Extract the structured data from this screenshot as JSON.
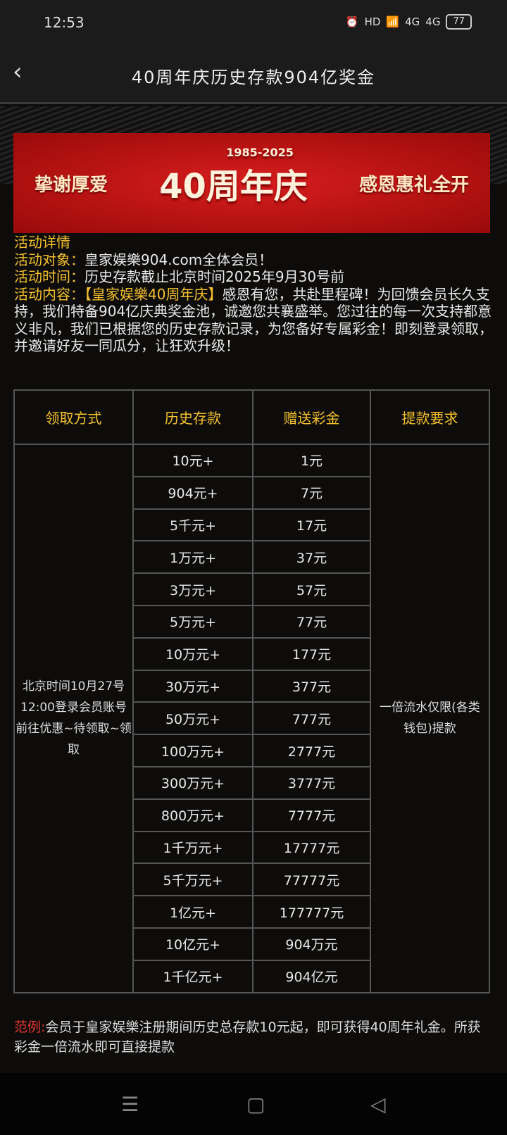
{
  "status": {
    "time": "12:53",
    "battery": "77",
    "network": "4G"
  },
  "header": {
    "title": "40周年庆历史存款904亿奖金"
  },
  "banner": {
    "left": "挚谢厚爱",
    "main": "40周年庆",
    "years": "1985-2025",
    "right": "感恩惠礼全开"
  },
  "details": {
    "heading": "活动详情",
    "target_label": "活动对象：",
    "target": "皇家娱樂904.com全体会员！",
    "time_label": "活动时间：",
    "time": "历史存款截止北京时间2025年9月30号前",
    "content_label": "活动内容：",
    "content_highlight": "【皇家娱樂40周年庆】",
    "content": "感恩有您，共赴里程碑！为回馈会员长久支持，我们特备904亿庆典奖金池，诚邀您共襄盛举。您过往的每一次支持都意义非凡，我们已根据您的历史存款记录，为您备好专属彩金！即刻登录领取，并邀请好友一同瓜分，让狂欢升级！"
  },
  "table": {
    "headers": [
      "领取方式",
      "历史存款",
      "赠送彩金",
      "提款要求"
    ],
    "method": "北京时间10月27号12:00登录会员账号前往优惠~待领取~领取",
    "requirement": "一倍流水仅限(各类钱包)提款",
    "rows": [
      [
        "10元+",
        "1元"
      ],
      [
        "904元+",
        "7元"
      ],
      [
        "5千元+",
        "17元"
      ],
      [
        "1万元+",
        "37元"
      ],
      [
        "3万元+",
        "57元"
      ],
      [
        "5万元+",
        "77元"
      ],
      [
        "10万元+",
        "177元"
      ],
      [
        "30万元+",
        "377元"
      ],
      [
        "50万元+",
        "777元"
      ],
      [
        "100万元+",
        "2777元"
      ],
      [
        "300万元+",
        "3777元"
      ],
      [
        "800万元+",
        "7777元"
      ],
      [
        "1千万元+",
        "17777元"
      ],
      [
        "5千万元+",
        "77777元"
      ],
      [
        "1亿元+",
        "177777元"
      ],
      [
        "10亿元+",
        "904万元"
      ],
      [
        "1千亿元+",
        "904亿元"
      ]
    ]
  },
  "note": {
    "label": "范例:",
    "text": "会员于皇家娱樂注册期间历史总存款10元起，即可获得40周年礼金。所获彩金一倍流水即可直接提款"
  }
}
